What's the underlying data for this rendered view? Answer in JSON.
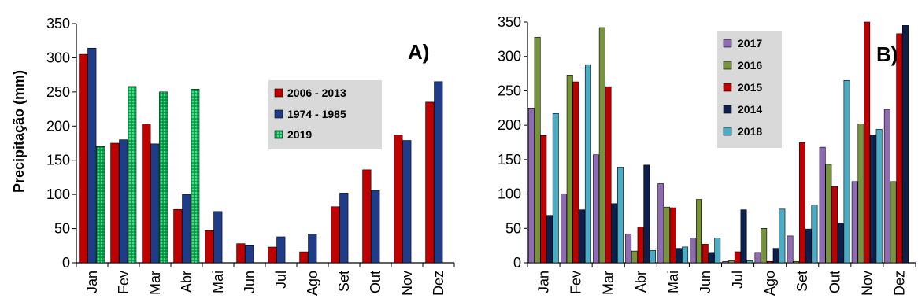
{
  "chart_data": [
    {
      "type": "bar",
      "panel_label": "A)",
      "ylabel": "Precipitação (mm)",
      "ylim": [
        0,
        350
      ],
      "yticks": [
        0,
        50,
        100,
        150,
        200,
        250,
        300,
        350
      ],
      "categories": [
        "Jan",
        "Fev",
        "Mar",
        "Abr",
        "Mai",
        "Jun",
        "Jul",
        "Ago",
        "Set",
        "Out",
        "Nov",
        "Dez"
      ],
      "legend_position": "upper-right",
      "series": [
        {
          "name": "2006 - 2013",
          "color": "#c00000",
          "values": [
            305,
            175,
            203,
            78,
            47,
            28,
            23,
            16,
            82,
            136,
            187,
            235
          ]
        },
        {
          "name": "1974 - 1985",
          "color": "#1f3c88",
          "values": [
            314,
            180,
            174,
            100,
            75,
            25,
            38,
            42,
            102,
            106,
            179,
            265
          ]
        },
        {
          "name": "2019",
          "color": "#00b050",
          "pattern": "dotted",
          "values": [
            170,
            258,
            250,
            254,
            null,
            null,
            null,
            null,
            null,
            null,
            null,
            null
          ]
        }
      ]
    },
    {
      "type": "bar",
      "panel_label": "B)",
      "ylim": [
        0,
        350
      ],
      "yticks": [
        0,
        50,
        100,
        150,
        200,
        250,
        300,
        350
      ],
      "categories": [
        "Jan",
        "Fev",
        "Mar",
        "Abr",
        "Mai",
        "Jun",
        "Jul",
        "Ago",
        "Set",
        "Out",
        "Nov",
        "Dez"
      ],
      "legend_position": "upper-center",
      "series": [
        {
          "name": "2017",
          "color": "#8e6bb2",
          "values": [
            225,
            100,
            157,
            42,
            115,
            36,
            2,
            15,
            39,
            168,
            118,
            223
          ]
        },
        {
          "name": "2016",
          "color": "#77933c",
          "values": [
            328,
            273,
            342,
            17,
            81,
            92,
            3,
            50,
            2,
            143,
            202,
            118
          ]
        },
        {
          "name": "2015",
          "color": "#c00000",
          "values": [
            185,
            263,
            256,
            52,
            80,
            27,
            16,
            2,
            175,
            111,
            350,
            333
          ]
        },
        {
          "name": "2014",
          "color": "#0d1f4d",
          "values": [
            69,
            77,
            86,
            142,
            21,
            15,
            77,
            21,
            49,
            58,
            186,
            345
          ]
        },
        {
          "name": "2018",
          "color": "#4bacc6",
          "values": [
            217,
            288,
            139,
            18,
            23,
            36,
            3,
            78,
            84,
            265,
            194,
            null
          ]
        }
      ]
    }
  ]
}
